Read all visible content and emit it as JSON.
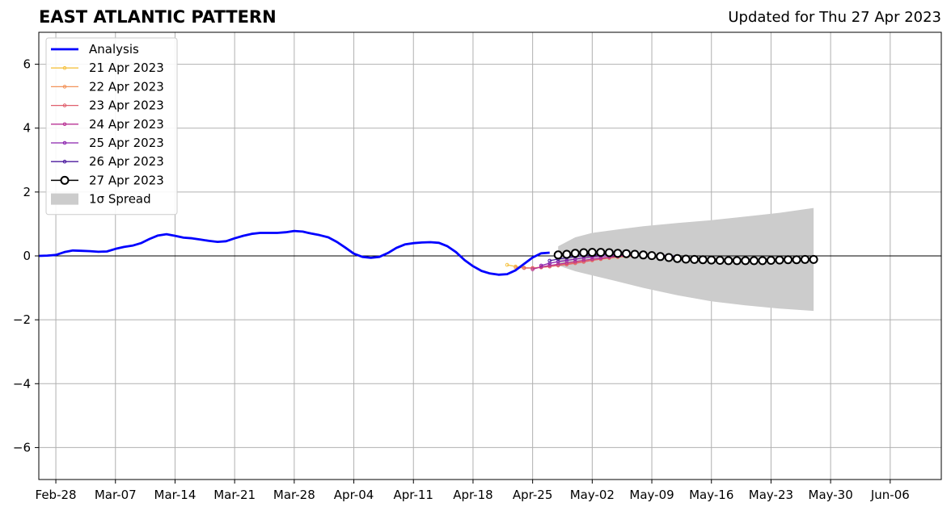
{
  "header": {
    "title": "EAST ATLANTIC PATTERN",
    "updated": "Updated for Thu 27 Apr 2023"
  },
  "chart_data": {
    "type": "line",
    "title": "EAST ATLANTIC PATTERN",
    "subtitle": "Updated for Thu 27 Apr 2023",
    "xlabel": "",
    "ylabel": "",
    "x_is_date": true,
    "xlim": [
      "2023-02-26",
      "2023-06-12"
    ],
    "ylim": [
      -7,
      7
    ],
    "x_ticks": [
      {
        "date": "2023-02-28",
        "label": "Feb-28"
      },
      {
        "date": "2023-03-07",
        "label": "Mar-07"
      },
      {
        "date": "2023-03-14",
        "label": "Mar-14"
      },
      {
        "date": "2023-03-21",
        "label": "Mar-21"
      },
      {
        "date": "2023-03-28",
        "label": "Mar-28"
      },
      {
        "date": "2023-04-04",
        "label": "Apr-04"
      },
      {
        "date": "2023-04-11",
        "label": "Apr-11"
      },
      {
        "date": "2023-04-18",
        "label": "Apr-18"
      },
      {
        "date": "2023-04-25",
        "label": "Apr-25"
      },
      {
        "date": "2023-05-02",
        "label": "May-02"
      },
      {
        "date": "2023-05-09",
        "label": "May-09"
      },
      {
        "date": "2023-05-16",
        "label": "May-16"
      },
      {
        "date": "2023-05-23",
        "label": "May-23"
      },
      {
        "date": "2023-05-30",
        "label": "May-30"
      },
      {
        "date": "2023-06-06",
        "label": "Jun-06"
      }
    ],
    "y_ticks": [
      {
        "value": 6,
        "label": "6"
      },
      {
        "value": 4,
        "label": "4"
      },
      {
        "value": 2,
        "label": "2"
      },
      {
        "value": 0,
        "label": "0"
      },
      {
        "value": -2,
        "label": "−2"
      },
      {
        "value": -4,
        "label": "−4"
      },
      {
        "value": -6,
        "label": "−6"
      }
    ],
    "grid": true,
    "legend_position": "upper-left",
    "zero_line": 0,
    "analysis": {
      "name": "Analysis",
      "color": "#0000ff",
      "x": [
        "2023-02-26",
        "2023-02-27",
        "2023-02-28",
        "2023-03-01",
        "2023-03-02",
        "2023-03-03",
        "2023-03-04",
        "2023-03-05",
        "2023-03-06",
        "2023-03-07",
        "2023-03-08",
        "2023-03-09",
        "2023-03-10",
        "2023-03-11",
        "2023-03-12",
        "2023-03-13",
        "2023-03-14",
        "2023-03-15",
        "2023-03-16",
        "2023-03-17",
        "2023-03-18",
        "2023-03-19",
        "2023-03-20",
        "2023-03-21",
        "2023-03-22",
        "2023-03-23",
        "2023-03-24",
        "2023-03-25",
        "2023-03-26",
        "2023-03-27",
        "2023-03-28",
        "2023-03-29",
        "2023-03-30",
        "2023-03-31",
        "2023-04-01",
        "2023-04-02",
        "2023-04-03",
        "2023-04-04",
        "2023-04-05",
        "2023-04-06",
        "2023-04-07",
        "2023-04-08",
        "2023-04-09",
        "2023-04-10",
        "2023-04-11",
        "2023-04-12",
        "2023-04-13",
        "2023-04-14",
        "2023-04-15",
        "2023-04-16",
        "2023-04-17",
        "2023-04-18",
        "2023-04-19",
        "2023-04-20",
        "2023-04-21",
        "2023-04-22",
        "2023-04-23",
        "2023-04-24",
        "2023-04-25",
        "2023-04-26",
        "2023-04-27"
      ],
      "y": [
        0.0,
        0.01,
        0.03,
        0.12,
        0.17,
        0.16,
        0.15,
        0.13,
        0.14,
        0.22,
        0.28,
        0.32,
        0.4,
        0.53,
        0.64,
        0.68,
        0.63,
        0.57,
        0.55,
        0.51,
        0.47,
        0.44,
        0.46,
        0.55,
        0.63,
        0.69,
        0.72,
        0.72,
        0.72,
        0.74,
        0.78,
        0.76,
        0.7,
        0.65,
        0.58,
        0.44,
        0.26,
        0.07,
        -0.03,
        -0.06,
        -0.03,
        0.09,
        0.25,
        0.36,
        0.4,
        0.42,
        0.43,
        0.41,
        0.3,
        0.12,
        -0.13,
        -0.32,
        -0.47,
        -0.55,
        -0.59,
        -0.57,
        -0.45,
        -0.25,
        -0.05,
        0.08,
        0.1
      ]
    },
    "forecasts": [
      {
        "name": "21 Apr 2023",
        "color": "#f5c242",
        "start": "2023-04-22",
        "y": [
          -0.28,
          -0.33,
          -0.37,
          -0.38,
          -0.36,
          -0.33,
          -0.3,
          -0.26,
          -0.22,
          -0.18,
          -0.14,
          -0.1,
          -0.07,
          -0.04,
          -0.02,
          0.0
        ]
      },
      {
        "name": "22 Apr 2023",
        "color": "#f2935a",
        "start": "2023-04-23",
        "y": [
          -0.36,
          -0.38,
          -0.38,
          -0.36,
          -0.33,
          -0.29,
          -0.25,
          -0.2,
          -0.16,
          -0.12,
          -0.08,
          -0.05,
          -0.02,
          0.0,
          0.01,
          0.02
        ]
      },
      {
        "name": "23 Apr 2023",
        "color": "#e0606e",
        "start": "2023-04-24",
        "y": [
          -0.38,
          -0.38,
          -0.36,
          -0.33,
          -0.3,
          -0.27,
          -0.23,
          -0.19,
          -0.14,
          -0.1,
          -0.06,
          -0.03,
          -0.01,
          0.01,
          0.02,
          0.02
        ]
      },
      {
        "name": "24 Apr 2023",
        "color": "#b83294",
        "start": "2023-04-25",
        "y": [
          -0.42,
          -0.34,
          -0.3,
          -0.26,
          -0.22,
          -0.18,
          -0.14,
          -0.1,
          -0.07,
          -0.04,
          -0.02,
          0.0,
          0.01,
          0.02,
          0.02,
          0.02
        ]
      },
      {
        "name": "25 Apr 2023",
        "color": "#8a20ad",
        "start": "2023-04-26",
        "y": [
          -0.3,
          -0.23,
          -0.18,
          -0.14,
          -0.1,
          -0.06,
          -0.03,
          -0.01,
          0.01,
          0.02,
          0.03,
          0.03,
          0.03,
          0.02,
          0.02,
          0.01
        ]
      },
      {
        "name": "26 Apr 2023",
        "color": "#4b1a9e",
        "start": "2023-04-27",
        "y": [
          -0.15,
          -0.1,
          -0.06,
          -0.02,
          0.01,
          0.03,
          0.04,
          0.05,
          0.05,
          0.05,
          0.04,
          0.03,
          0.02,
          0.01,
          0.0,
          -0.01
        ]
      }
    ],
    "latest_forecast": {
      "name": "27 Apr 2023",
      "color": "#000000",
      "fill": "#ffffff",
      "start": "2023-04-28",
      "y": [
        0.03,
        0.05,
        0.08,
        0.1,
        0.11,
        0.11,
        0.1,
        0.08,
        0.07,
        0.05,
        0.03,
        0.01,
        -0.02,
        -0.05,
        -0.08,
        -0.1,
        -0.11,
        -0.12,
        -0.13,
        -0.14,
        -0.15,
        -0.15,
        -0.15,
        -0.15,
        -0.15,
        -0.14,
        -0.13,
        -0.12,
        -0.12,
        -0.11,
        -0.11
      ]
    },
    "spread": {
      "name": "1σ Spread",
      "color": "#cccccc",
      "x": [
        "2023-04-28",
        "2023-04-30",
        "2023-05-02",
        "2023-05-05",
        "2023-05-08",
        "2023-05-12",
        "2023-05-16",
        "2023-05-20",
        "2023-05-24",
        "2023-05-28"
      ],
      "upper": [
        0.3,
        0.58,
        0.72,
        0.83,
        0.93,
        1.03,
        1.12,
        1.23,
        1.35,
        1.5
      ],
      "lower": [
        -0.3,
        -0.48,
        -0.61,
        -0.8,
        -1.0,
        -1.23,
        -1.42,
        -1.55,
        -1.65,
        -1.72
      ]
    },
    "legend": [
      {
        "label": "Analysis",
        "style": "thick-line",
        "color": "#0000ff"
      },
      {
        "label": "21 Apr 2023",
        "style": "line-dot",
        "color": "#f5c242"
      },
      {
        "label": "22 Apr 2023",
        "style": "line-dot",
        "color": "#f2935a"
      },
      {
        "label": "23 Apr 2023",
        "style": "line-dot",
        "color": "#e0606e"
      },
      {
        "label": "24 Apr 2023",
        "style": "line-dot",
        "color": "#b83294"
      },
      {
        "label": "25 Apr 2023",
        "style": "line-dot",
        "color": "#8a20ad"
      },
      {
        "label": "26 Apr 2023",
        "style": "line-dot",
        "color": "#4b1a9e"
      },
      {
        "label": "27 Apr 2023",
        "style": "line-circle",
        "color": "#000000"
      },
      {
        "label": "1σ Spread",
        "style": "patch",
        "color": "#cccccc"
      }
    ]
  }
}
